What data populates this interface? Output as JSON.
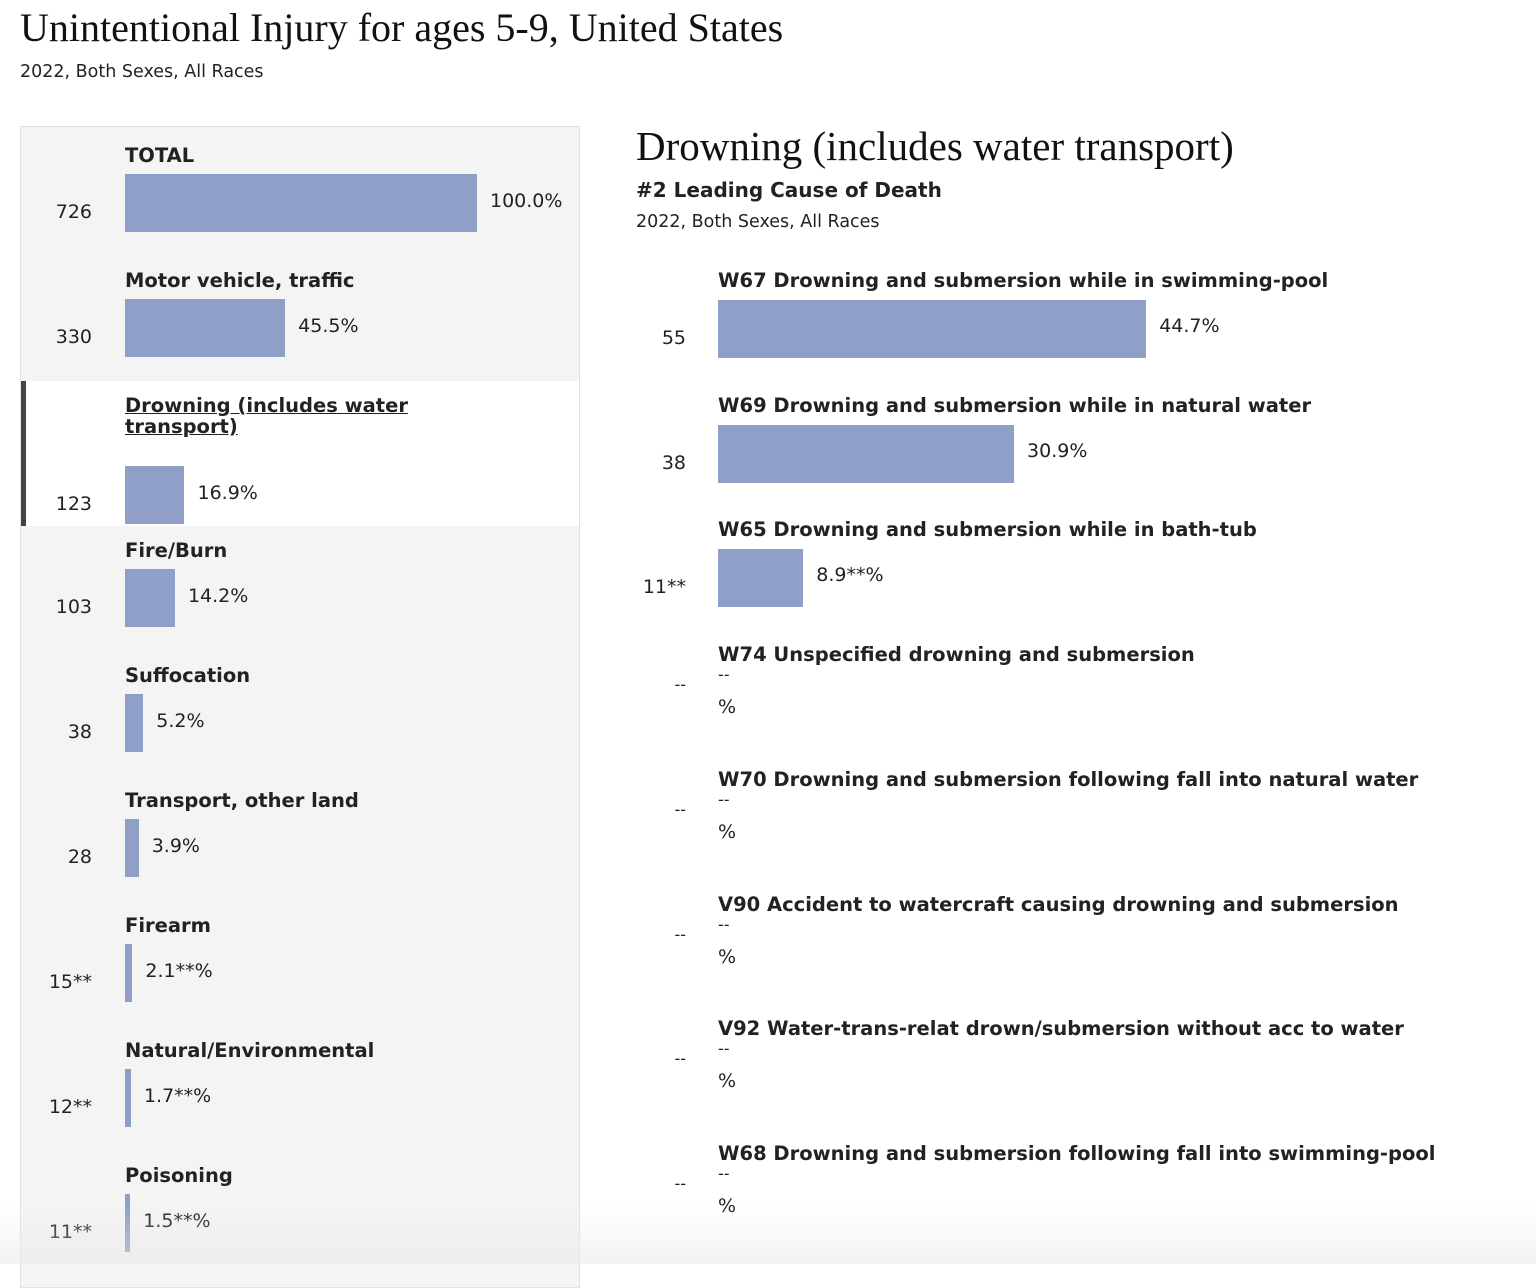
{
  "header": {
    "title": "Unintentional Injury for ages 5-9, United States",
    "subtitle": "2022, Both Sexes, All Races"
  },
  "detail": {
    "title": "Drowning (includes water transport)",
    "rank": "#2 Leading Cause of Death",
    "subtitle": "2022, Both Sexes, All Races"
  },
  "colors": {
    "bar": "#909fc8",
    "panel": "#f4f4f4",
    "selected_border": "#444444"
  },
  "chart_data": [
    {
      "type": "bar",
      "orientation": "horizontal",
      "selected": "Drowning (includes water transport)",
      "rows": [
        {
          "label": "TOTAL",
          "count": "726",
          "percent": 100.0,
          "percent_label": "100.0%"
        },
        {
          "label": "Motor vehicle, traffic",
          "count": "330",
          "percent": 45.5,
          "percent_label": "45.5%"
        },
        {
          "label": "Drowning (includes water transport)",
          "count": "123",
          "percent": 16.9,
          "percent_label": "16.9%"
        },
        {
          "label": "Fire/Burn",
          "count": "103",
          "percent": 14.2,
          "percent_label": "14.2%"
        },
        {
          "label": "Suffocation",
          "count": "38",
          "percent": 5.2,
          "percent_label": "5.2%"
        },
        {
          "label": "Transport, other land",
          "count": "28",
          "percent": 3.9,
          "percent_label": "3.9%"
        },
        {
          "label": "Firearm",
          "count": "15**",
          "percent": 2.1,
          "percent_label": "2.1**%"
        },
        {
          "label": "Natural/Environmental",
          "count": "12**",
          "percent": 1.7,
          "percent_label": "1.7**%"
        },
        {
          "label": "Poisoning",
          "count": "11**",
          "percent": 1.5,
          "percent_label": "1.5**%"
        }
      ]
    },
    {
      "type": "bar",
      "orientation": "horizontal",
      "rows": [
        {
          "label": "W67 Drowning and submersion while in swimming-pool",
          "count": "55",
          "percent": 44.7,
          "percent_label": "44.7%"
        },
        {
          "label": "W69 Drowning and submersion while in natural water",
          "count": "38",
          "percent": 30.9,
          "percent_label": "30.9%"
        },
        {
          "label": "W65 Drowning and submersion while in bath-tub",
          "count": "11**",
          "percent": 8.9,
          "percent_label": "8.9**%"
        },
        {
          "label": "W74 Unspecified drowning and submersion",
          "count": "--",
          "percent": null,
          "value_label": "--",
          "percent_label": "%"
        },
        {
          "label": "W70 Drowning and submersion following fall into natural water",
          "count": "--",
          "percent": null,
          "value_label": "--",
          "percent_label": "%"
        },
        {
          "label": "V90 Accident to watercraft causing drowning and submersion",
          "count": "--",
          "percent": null,
          "value_label": "--",
          "percent_label": "%"
        },
        {
          "label": "V92 Water-trans-relat drown/submersion without acc to water",
          "count": "--",
          "percent": null,
          "value_label": "--",
          "percent_label": "%"
        },
        {
          "label": "W68 Drowning and submersion following fall into swimming-pool",
          "count": "--",
          "percent": null,
          "value_label": "--",
          "percent_label": "%"
        }
      ]
    }
  ]
}
